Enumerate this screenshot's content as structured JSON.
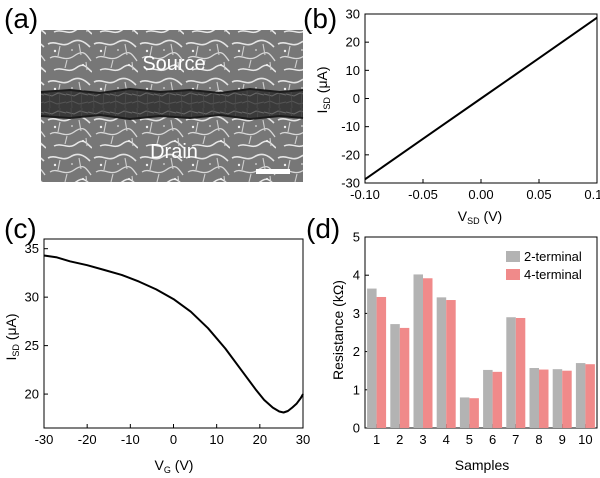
{
  "panels": {
    "a": {
      "label": "(a)",
      "source_label": "Source",
      "drain_label": "Drain"
    },
    "b": {
      "label": "(b)"
    },
    "c": {
      "label": "(c)"
    },
    "d": {
      "label": "(d)"
    }
  },
  "colors": {
    "line": "#000000",
    "bar_2t": "#b3b3b3",
    "bar_4t": "#f08a8a",
    "sem_bg": "#6e6e6e"
  },
  "chart_data": [
    {
      "id": "b",
      "type": "line",
      "title": "",
      "xlabel_main": "V",
      "xlabel_sub": "SD",
      "xlabel_unit": " (V)",
      "ylabel_main": "I",
      "ylabel_sub": "SD",
      "ylabel_unit": " (μA)",
      "xlim": [
        -0.1,
        0.1
      ],
      "ylim": [
        -30,
        30
      ],
      "xticks": [
        -0.1,
        -0.05,
        0.0,
        0.05,
        0.1
      ],
      "xtick_labels": [
        "-0.10",
        "-0.05",
        "0.00",
        "0.05",
        "0.10"
      ],
      "yticks": [
        -30,
        -20,
        -10,
        0,
        10,
        20,
        30
      ],
      "ytick_labels": [
        "-30",
        "-20",
        "-10",
        "0",
        "10",
        "20",
        "30"
      ],
      "x": [
        -0.1,
        -0.05,
        0.0,
        0.05,
        0.1
      ],
      "y": [
        -28.7,
        -14.3,
        0,
        14.3,
        28.7
      ]
    },
    {
      "id": "c",
      "type": "line",
      "title": "",
      "xlabel_main": "V",
      "xlabel_sub": "G",
      "xlabel_unit": " (V)",
      "ylabel_main": "I",
      "ylabel_sub": "SD",
      "ylabel_unit": " (μA)",
      "xlim": [
        -30,
        30
      ],
      "ylim": [
        16.5,
        36
      ],
      "xticks": [
        -30,
        -20,
        -10,
        0,
        10,
        20,
        30
      ],
      "xtick_labels": [
        "-30",
        "-20",
        "-10",
        "0",
        "10",
        "20",
        "30"
      ],
      "yticks": [
        20,
        25,
        30,
        35
      ],
      "ytick_labels": [
        "20",
        "25",
        "30",
        "35"
      ],
      "x": [
        -30,
        -27,
        -24,
        -20,
        -16,
        -12,
        -8,
        -4,
        0,
        4,
        8,
        12,
        16,
        19,
        21,
        23,
        24.5,
        25.5,
        26.5,
        27.5,
        28.5,
        29.5,
        30
      ],
      "y": [
        34.3,
        34.1,
        33.7,
        33.3,
        32.8,
        32.3,
        31.6,
        30.8,
        29.8,
        28.5,
        26.8,
        24.7,
        22.3,
        20.5,
        19.4,
        18.6,
        18.2,
        18.1,
        18.25,
        18.6,
        19.0,
        19.6,
        20.0
      ]
    },
    {
      "id": "d",
      "type": "bar",
      "title": "",
      "xlabel": "Samples",
      "ylabel_main": "Resistance (k",
      "ylabel_omega": "Ω",
      "ylabel_end": ")",
      "ylim": [
        0,
        5
      ],
      "yticks": [
        0,
        1,
        2,
        3,
        4,
        5
      ],
      "ytick_labels": [
        "0",
        "1",
        "2",
        "3",
        "4",
        "5"
      ],
      "categories": [
        "1",
        "2",
        "3",
        "4",
        "5",
        "6",
        "7",
        "8",
        "9",
        "10"
      ],
      "series": [
        {
          "name": "2-terminal",
          "values": [
            3.65,
            2.72,
            4.02,
            3.42,
            0.8,
            1.52,
            2.9,
            1.57,
            1.54,
            1.7
          ]
        },
        {
          "name": "4-terminal",
          "values": [
            3.43,
            2.62,
            3.92,
            3.35,
            0.78,
            1.47,
            2.88,
            1.53,
            1.5,
            1.67
          ]
        }
      ],
      "legend_position": "top-right"
    }
  ]
}
